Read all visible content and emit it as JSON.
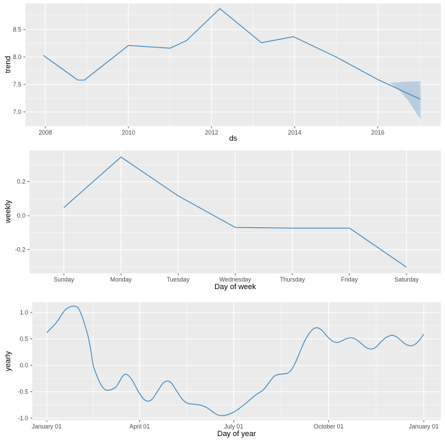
{
  "colors": {
    "panel_background": "#ebebeb",
    "grid_major": "#ffffff",
    "grid_minor": "#ffffff",
    "line": "#3182bd",
    "band_fill": "rgba(49,130,189,0.28)",
    "tick_label": "#4d4d4d",
    "axis_title": "#000000",
    "tick_mark": "#333333"
  },
  "chart_data": [
    {
      "type": "line",
      "name": "trend",
      "xlabel": "ds",
      "ylabel": "trend",
      "x_domain": [
        2007.52,
        2017.52
      ],
      "y_domain": [
        6.7375,
        8.975
      ],
      "x_ticks": [
        {
          "v": 2008,
          "label": "2008"
        },
        {
          "v": 2010,
          "label": "2010"
        },
        {
          "v": 2012,
          "label": "2012"
        },
        {
          "v": 2014,
          "label": "2014"
        },
        {
          "v": 2016,
          "label": "2016"
        }
      ],
      "x_minor": [
        2009,
        2011,
        2013,
        2015,
        2017
      ],
      "y_ticks": [
        {
          "v": 7.0,
          "label": "7.0"
        },
        {
          "v": 7.5,
          "label": "7.5"
        },
        {
          "v": 8.0,
          "label": "8.0"
        },
        {
          "v": 8.5,
          "label": "8.5"
        }
      ],
      "y_minor": [
        6.75,
        7.25,
        7.75,
        8.25,
        8.75
      ],
      "grid": true,
      "legend": "none",
      "series": [
        [
          2007.95,
          8.03
        ],
        [
          2008.78,
          7.58
        ],
        [
          2008.94,
          7.58
        ],
        [
          2010.0,
          8.21
        ],
        [
          2011.0,
          8.16
        ],
        [
          2011.4,
          8.3
        ],
        [
          2012.2,
          8.88
        ],
        [
          2013.2,
          8.26
        ],
        [
          2013.97,
          8.37
        ],
        [
          2015.0,
          8.0
        ],
        [
          2016.0,
          7.59
        ],
        [
          2017.03,
          7.23
        ]
      ],
      "band": {
        "x": [
          2016.28,
          2016.5,
          2016.74,
          2016.9,
          2017.03
        ],
        "upper": [
          7.53,
          7.54,
          7.55,
          7.555,
          7.56
        ],
        "lower": [
          7.53,
          7.41,
          7.2,
          7.01,
          6.87
        ]
      },
      "smooth": false
    },
    {
      "type": "line",
      "name": "weekly",
      "xlabel": "Day of week",
      "ylabel": "weekly",
      "categories": [
        "Sunday",
        "Monday",
        "Tuesday",
        "Wednesday",
        "Thursday",
        "Friday",
        "Saturday"
      ],
      "values": [
        0.048,
        0.345,
        0.117,
        -0.069,
        -0.073,
        -0.073,
        -0.303
      ],
      "y_domain": [
        -0.339,
        0.384
      ],
      "y_ticks": [
        {
          "v": -0.2,
          "label": "-0.2"
        },
        {
          "v": 0.0,
          "label": "0.0"
        },
        {
          "v": 0.2,
          "label": "0.2"
        }
      ],
      "y_minor": [
        -0.3,
        -0.1,
        0.1,
        0.3
      ],
      "grid": true,
      "legend": "none",
      "smooth": false
    },
    {
      "type": "line",
      "name": "yearly",
      "xlabel": "Day of year",
      "ylabel": "yearly",
      "x_domain": [
        -13,
        382.6
      ],
      "y_domain": [
        -1.039,
        1.195
      ],
      "x_ticks": [
        {
          "v": 1,
          "label": "January 01"
        },
        {
          "v": 91,
          "label": "April 01"
        },
        {
          "v": 182,
          "label": "July 01"
        },
        {
          "v": 274,
          "label": "October 01"
        },
        {
          "v": 366,
          "label": "January 01"
        }
      ],
      "x_minor": [
        46,
        136.5,
        228,
        320
      ],
      "y_ticks": [
        {
          "v": -1.0,
          "label": "-1.0"
        },
        {
          "v": -0.5,
          "label": "-0.5"
        },
        {
          "v": 0.0,
          "label": "0.0"
        },
        {
          "v": 0.5,
          "label": "0.5"
        },
        {
          "v": 1.0,
          "label": "1.0"
        }
      ],
      "y_minor": [
        -0.75,
        -0.25,
        0.25,
        0.75
      ],
      "grid": true,
      "legend": "none",
      "smooth": true,
      "series": [
        [
          1,
          0.62
        ],
        [
          10,
          0.8
        ],
        [
          18,
          1.03
        ],
        [
          23,
          1.1
        ],
        [
          26,
          1.12
        ],
        [
          29,
          1.115
        ],
        [
          32,
          1.07
        ],
        [
          36,
          0.88
        ],
        [
          41,
          0.55
        ],
        [
          44,
          0.25
        ],
        [
          46,
          0.0
        ],
        [
          49,
          -0.17
        ],
        [
          52,
          -0.31
        ],
        [
          55,
          -0.41
        ],
        [
          58,
          -0.465
        ],
        [
          61,
          -0.47
        ],
        [
          64,
          -0.455
        ],
        [
          68,
          -0.41
        ],
        [
          71,
          -0.32
        ],
        [
          74,
          -0.22
        ],
        [
          76,
          -0.175
        ],
        [
          78,
          -0.17
        ],
        [
          80,
          -0.19
        ],
        [
          83,
          -0.26
        ],
        [
          86,
          -0.36
        ],
        [
          89,
          -0.47
        ],
        [
          92,
          -0.565
        ],
        [
          95,
          -0.64
        ],
        [
          98,
          -0.675
        ],
        [
          101,
          -0.67
        ],
        [
          104,
          -0.62
        ],
        [
          107,
          -0.53
        ],
        [
          110,
          -0.44
        ],
        [
          113,
          -0.35
        ],
        [
          116,
          -0.305
        ],
        [
          119,
          -0.3
        ],
        [
          122,
          -0.34
        ],
        [
          125,
          -0.43
        ],
        [
          128,
          -0.52
        ],
        [
          131,
          -0.61
        ],
        [
          134,
          -0.675
        ],
        [
          137,
          -0.715
        ],
        [
          140,
          -0.73
        ],
        [
          144,
          -0.735
        ],
        [
          148,
          -0.745
        ],
        [
          152,
          -0.765
        ],
        [
          156,
          -0.8
        ],
        [
          160,
          -0.855
        ],
        [
          164,
          -0.91
        ],
        [
          167,
          -0.94
        ],
        [
          170,
          -0.95
        ],
        [
          174,
          -0.945
        ],
        [
          178,
          -0.92
        ],
        [
          182,
          -0.885
        ],
        [
          186,
          -0.835
        ],
        [
          190,
          -0.775
        ],
        [
          194,
          -0.715
        ],
        [
          198,
          -0.645
        ],
        [
          202,
          -0.58
        ],
        [
          206,
          -0.525
        ],
        [
          209,
          -0.49
        ],
        [
          212,
          -0.435
        ],
        [
          215,
          -0.36
        ],
        [
          218,
          -0.28
        ],
        [
          221,
          -0.21
        ],
        [
          224,
          -0.18
        ],
        [
          227,
          -0.168
        ],
        [
          230,
          -0.162
        ],
        [
          233,
          -0.155
        ],
        [
          236,
          -0.125
        ],
        [
          239,
          -0.05
        ],
        [
          242,
          0.06
        ],
        [
          245,
          0.2
        ],
        [
          248,
          0.34
        ],
        [
          251,
          0.47
        ],
        [
          254,
          0.57
        ],
        [
          257,
          0.65
        ],
        [
          260,
          0.7
        ],
        [
          263,
          0.71
        ],
        [
          266,
          0.685
        ],
        [
          269,
          0.63
        ],
        [
          272,
          0.56
        ],
        [
          275,
          0.5
        ],
        [
          278,
          0.455
        ],
        [
          281,
          0.435
        ],
        [
          284,
          0.44
        ],
        [
          287,
          0.465
        ],
        [
          290,
          0.495
        ],
        [
          293,
          0.515
        ],
        [
          296,
          0.52
        ],
        [
          299,
          0.505
        ],
        [
          302,
          0.47
        ],
        [
          305,
          0.42
        ],
        [
          308,
          0.37
        ],
        [
          311,
          0.33
        ],
        [
          314,
          0.31
        ],
        [
          317,
          0.315
        ],
        [
          320,
          0.35
        ],
        [
          323,
          0.41
        ],
        [
          326,
          0.47
        ],
        [
          329,
          0.52
        ],
        [
          332,
          0.55
        ],
        [
          335,
          0.57
        ],
        [
          338,
          0.555
        ],
        [
          341,
          0.52
        ],
        [
          344,
          0.47
        ],
        [
          347,
          0.42
        ],
        [
          350,
          0.385
        ],
        [
          353,
          0.37
        ],
        [
          356,
          0.38
        ],
        [
          359,
          0.42
        ],
        [
          362,
          0.48
        ],
        [
          364,
          0.53
        ],
        [
          366,
          0.59
        ]
      ]
    }
  ]
}
